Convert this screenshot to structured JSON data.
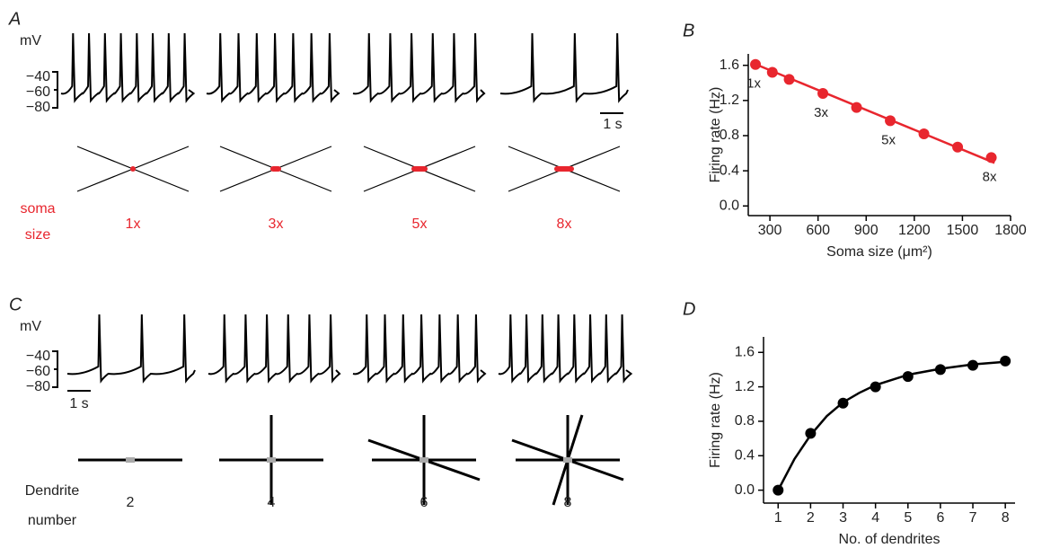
{
  "panel_a": {
    "label": "A",
    "unit": "mV",
    "scale_labels": [
      "−40",
      "−60",
      "−80"
    ],
    "time_scale": "1 s",
    "row_label": [
      "soma",
      "size"
    ],
    "conditions": [
      "1x",
      "3x",
      "5x",
      "8x"
    ]
  },
  "panel_c": {
    "label": "C",
    "unit": "mV",
    "scale_labels": [
      "−40",
      "−60",
      "−80"
    ],
    "time_scale": "1 s",
    "row_label": [
      "Dendrite",
      "number"
    ],
    "conditions": [
      "2",
      "4",
      "6",
      "8"
    ]
  },
  "chart_data": [
    {
      "type": "scatter",
      "panel_label": "B",
      "x_label": "Soma size (μm²)",
      "y_label": "Firing rate (Hz)",
      "x": [
        210,
        315,
        420,
        630,
        840,
        1050,
        1260,
        1470,
        1680
      ],
      "values": [
        1.61,
        1.52,
        1.44,
        1.28,
        1.12,
        0.97,
        0.82,
        0.67,
        0.55
      ],
      "color": "#e8262e",
      "fit": {
        "x": [
          200,
          1700
        ],
        "values": [
          1.62,
          0.49
        ]
      },
      "annotations": [
        {
          "text": "1x",
          "x": 210
        },
        {
          "text": "3x",
          "x": 630
        },
        {
          "text": "5x",
          "x": 1050
        },
        {
          "text": "8x",
          "x": 1680
        }
      ],
      "xlim": [
        165,
        1800
      ],
      "xticks": [
        300,
        600,
        900,
        1200,
        1500,
        1800
      ],
      "ylim": [
        -0.11,
        1.73
      ],
      "yticks": [
        {
          "value": 0,
          "label": "0.0"
        },
        0.4,
        0.8,
        1.2,
        1.6
      ]
    },
    {
      "type": "scatter",
      "panel_label": "D",
      "x_label": "No. of dendrites",
      "y_label": "Firing rate (Hz)",
      "x": [
        1,
        2,
        3,
        4,
        5,
        6,
        7,
        8
      ],
      "values": [
        0,
        0.66,
        1.01,
        1.2,
        1.32,
        1.4,
        1.45,
        1.5
      ],
      "color": "#000000",
      "fit": {
        "x": [
          1,
          1.5,
          2,
          2.5,
          3,
          3.5,
          4,
          5,
          6,
          7,
          8
        ],
        "values": [
          0,
          0.36,
          0.64,
          0.86,
          1.02,
          1.13,
          1.22,
          1.34,
          1.41,
          1.46,
          1.49
        ]
      },
      "xlim": [
        0.55,
        8.3
      ],
      "xticks": [
        1,
        2,
        3,
        4,
        5,
        6,
        7,
        8
      ],
      "ylim": [
        -0.15,
        1.78
      ],
      "yticks": [
        {
          "value": 0,
          "label": "0.0"
        },
        0.4,
        0.8,
        1.2,
        1.6
      ]
    }
  ]
}
